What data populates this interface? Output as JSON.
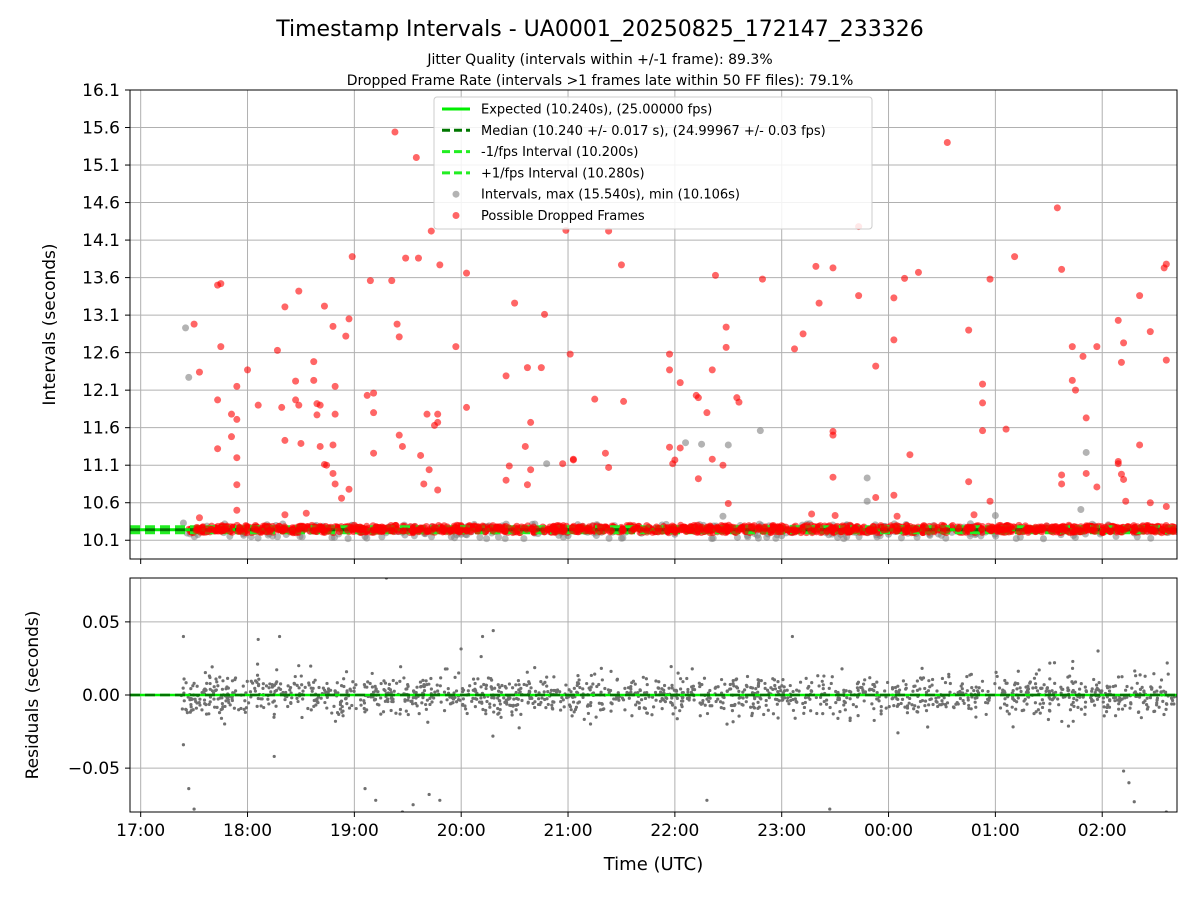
{
  "figure": {
    "title": "Timestamp Intervals - UA0001_20250825_172147_233326",
    "subtitle_1": "Jitter Quality (intervals within +/-1 frame): 89.3%",
    "subtitle_2": "Dropped Frame Rate (intervals >1 frames late within 50 FF files): 79.1%"
  },
  "colors": {
    "expected": "#00ee00",
    "median": "#007700",
    "fps_band": "#22ee22",
    "intervals": "#808080",
    "dropped": "#ff0000",
    "grid": "#b0b0b0",
    "residual": "#707070"
  },
  "chart_data": [
    {
      "type": "scatter",
      "title": "Timestamp Intervals - UA0001_20250825_172147_233326",
      "xlabel": "",
      "ylabel": "Intervals (seconds)",
      "x_unit": "hours since 17:00 UTC (axis labelled in clock time)",
      "xlim": [
        -0.1,
        9.7
      ],
      "ylim": [
        9.85,
        16.1
      ],
      "yticks": [
        "10.1",
        "10.6",
        "11.1",
        "11.6",
        "12.1",
        "12.6",
        "13.1",
        "13.6",
        "14.1",
        "14.6",
        "15.1",
        "15.6",
        "16.1"
      ],
      "grid": true,
      "legend_position": "top-center",
      "series": [
        {
          "name": "Expected (10.240s), (25.00000 fps)",
          "kind": "hline",
          "y": 10.24,
          "style": "solid"
        },
        {
          "name": "Median (10.240 +/- 0.017 s), (24.99967 +/- 0.03 fps)",
          "kind": "hline",
          "y": 10.24,
          "style": "dashed"
        },
        {
          "name": "-1/fps Interval (10.200s)",
          "kind": "hline",
          "y": 10.2,
          "style": "dashed"
        },
        {
          "name": "+1/fps Interval (10.280s)",
          "kind": "hline",
          "y": 10.28,
          "style": "dashed"
        },
        {
          "name": "Intervals, max (15.540s), min (10.106s)",
          "kind": "points",
          "max": 15.54,
          "min": 10.106,
          "points": [
            [
              0.42,
              12.93
            ],
            [
              0.45,
              12.27
            ],
            [
              0.4,
              10.33
            ],
            [
              0.5,
              10.25
            ],
            [
              3.8,
              11.12
            ],
            [
              5.1,
              11.4
            ],
            [
              5.25,
              11.38
            ],
            [
              5.5,
              11.37
            ],
            [
              5.8,
              11.56
            ],
            [
              8.45,
              10.12
            ],
            [
              8.8,
              10.51
            ],
            [
              8.85,
              11.27
            ],
            [
              6.8,
              10.93
            ],
            [
              6.8,
              10.62
            ],
            [
              8.0,
              10.43
            ],
            [
              5.45,
              10.42
            ],
            [
              1.2,
              10.19
            ],
            [
              2.1,
              10.15
            ],
            [
              3.0,
              10.18
            ],
            [
              4.0,
              10.16
            ],
            [
              5.0,
              10.18
            ],
            [
              6.0,
              10.16
            ],
            [
              7.0,
              10.18
            ]
          ]
        },
        {
          "name": "Possible Dropped Frames",
          "kind": "points",
          "points": [
            [
              0.5,
              12.98
            ],
            [
              0.55,
              12.34
            ],
            [
              0.55,
              10.4
            ],
            [
              0.72,
              13.5
            ],
            [
              0.75,
              13.52
            ],
            [
              0.75,
              12.68
            ],
            [
              0.72,
              11.97
            ],
            [
              0.72,
              11.32
            ],
            [
              0.85,
              11.78
            ],
            [
              0.85,
              11.48
            ],
            [
              0.9,
              11.71
            ],
            [
              0.9,
              11.2
            ],
            [
              0.9,
              10.84
            ],
            [
              0.9,
              10.5
            ],
            [
              0.9,
              12.15
            ],
            [
              1.0,
              12.37
            ],
            [
              1.1,
              11.9
            ],
            [
              1.28,
              12.63
            ],
            [
              1.32,
              11.87
            ],
            [
              1.35,
              13.21
            ],
            [
              1.35,
              11.43
            ],
            [
              1.35,
              10.44
            ],
            [
              1.48,
              13.42
            ],
            [
              1.45,
              12.22
            ],
            [
              1.45,
              11.97
            ],
            [
              1.48,
              11.9
            ],
            [
              1.5,
              11.39
            ],
            [
              1.55,
              10.46
            ],
            [
              1.62,
              12.48
            ],
            [
              1.62,
              12.23
            ],
            [
              1.65,
              11.92
            ],
            [
              1.68,
              11.9
            ],
            [
              1.65,
              11.77
            ],
            [
              1.68,
              11.35
            ],
            [
              1.72,
              13.22
            ],
            [
              1.72,
              11.11
            ],
            [
              1.74,
              11.1
            ],
            [
              1.8,
              12.95
            ],
            [
              1.8,
              10.99
            ],
            [
              1.82,
              10.85
            ],
            [
              1.82,
              12.15
            ],
            [
              1.82,
              11.78
            ],
            [
              1.8,
              11.37
            ],
            [
              1.88,
              10.66
            ],
            [
              1.92,
              12.82
            ],
            [
              1.95,
              13.05
            ],
            [
              1.95,
              10.78
            ],
            [
              1.98,
              13.88
            ],
            [
              2.12,
              12.03
            ],
            [
              2.15,
              13.56
            ],
            [
              2.18,
              11.8
            ],
            [
              2.18,
              12.06
            ],
            [
              2.18,
              11.26
            ],
            [
              2.35,
              13.56
            ],
            [
              2.38,
              15.54
            ],
            [
              2.4,
              12.98
            ],
            [
              2.42,
              12.81
            ],
            [
              2.42,
              11.5
            ],
            [
              2.45,
              11.35
            ],
            [
              2.48,
              13.86
            ],
            [
              2.58,
              15.2
            ],
            [
              2.6,
              13.86
            ],
            [
              2.62,
              11.23
            ],
            [
              2.65,
              10.85
            ],
            [
              2.68,
              11.78
            ],
            [
              2.7,
              11.04
            ],
            [
              2.72,
              14.22
            ],
            [
              2.75,
              11.63
            ],
            [
              2.78,
              11.67
            ],
            [
              2.78,
              11.78
            ],
            [
              2.78,
              10.77
            ],
            [
              2.8,
              13.77
            ],
            [
              2.95,
              12.68
            ],
            [
              3.05,
              13.66
            ],
            [
              3.05,
              11.87
            ],
            [
              3.42,
              12.29
            ],
            [
              3.45,
              11.09
            ],
            [
              3.42,
              10.9
            ],
            [
              3.5,
              13.26
            ],
            [
              3.6,
              11.35
            ],
            [
              3.62,
              12.4
            ],
            [
              3.62,
              10.84
            ],
            [
              3.65,
              11.67
            ],
            [
              3.65,
              11.04
            ],
            [
              3.75,
              12.4
            ],
            [
              3.78,
              13.11
            ],
            [
              3.95,
              11.12
            ],
            [
              3.98,
              14.23
            ],
            [
              4.02,
              12.58
            ],
            [
              4.05,
              11.18
            ],
            [
              4.05,
              11.17
            ],
            [
              4.25,
              11.98
            ],
            [
              4.35,
              11.26
            ],
            [
              4.38,
              11.07
            ],
            [
              4.38,
              14.22
            ],
            [
              4.5,
              13.77
            ],
            [
              4.52,
              11.95
            ],
            [
              4.95,
              12.58
            ],
            [
              4.95,
              12.37
            ],
            [
              4.95,
              11.34
            ],
            [
              4.98,
              11.12
            ],
            [
              5.0,
              11.17
            ],
            [
              5.05,
              12.2
            ],
            [
              5.05,
              11.33
            ],
            [
              5.2,
              12.03
            ],
            [
              5.22,
              12.0
            ],
            [
              5.22,
              10.92
            ],
            [
              5.3,
              11.8
            ],
            [
              5.35,
              12.37
            ],
            [
              5.35,
              11.18
            ],
            [
              5.38,
              13.63
            ],
            [
              5.45,
              11.1
            ],
            [
              5.48,
              12.94
            ],
            [
              5.48,
              12.67
            ],
            [
              5.5,
              10.59
            ],
            [
              5.58,
              12.0
            ],
            [
              5.6,
              11.94
            ],
            [
              5.82,
              13.58
            ],
            [
              6.12,
              12.65
            ],
            [
              6.2,
              12.85
            ],
            [
              6.28,
              10.45
            ],
            [
              6.32,
              13.75
            ],
            [
              6.35,
              13.26
            ],
            [
              6.48,
              13.73
            ],
            [
              6.48,
              11.55
            ],
            [
              6.48,
              11.5
            ],
            [
              6.48,
              10.94
            ],
            [
              6.5,
              10.43
            ],
            [
              6.72,
              14.28
            ],
            [
              6.72,
              13.36
            ],
            [
              6.88,
              12.42
            ],
            [
              6.88,
              10.67
            ],
            [
              7.05,
              13.33
            ],
            [
              7.05,
              12.77
            ],
            [
              7.05,
              10.7
            ],
            [
              7.08,
              10.42
            ],
            [
              7.15,
              13.59
            ],
            [
              7.2,
              11.24
            ],
            [
              7.28,
              13.67
            ],
            [
              7.55,
              15.4
            ],
            [
              7.75,
              12.9
            ],
            [
              7.75,
              10.88
            ],
            [
              7.8,
              10.44
            ],
            [
              7.88,
              12.18
            ],
            [
              7.88,
              11.93
            ],
            [
              7.88,
              11.56
            ],
            [
              7.95,
              13.58
            ],
            [
              7.95,
              10.62
            ],
            [
              8.1,
              11.58
            ],
            [
              8.18,
              13.88
            ],
            [
              8.58,
              14.53
            ],
            [
              8.62,
              13.71
            ],
            [
              8.62,
              10.97
            ],
            [
              8.62,
              10.85
            ],
            [
              8.72,
              12.68
            ],
            [
              8.72,
              12.23
            ],
            [
              8.75,
              12.1
            ],
            [
              8.82,
              12.55
            ],
            [
              8.85,
              11.73
            ],
            [
              8.85,
              10.99
            ],
            [
              8.95,
              12.68
            ],
            [
              8.95,
              10.81
            ],
            [
              9.15,
              13.03
            ],
            [
              9.15,
              11.12
            ],
            [
              9.15,
              11.15
            ],
            [
              9.18,
              12.47
            ],
            [
              9.18,
              10.98
            ],
            [
              9.2,
              12.73
            ],
            [
              9.2,
              10.91
            ],
            [
              9.22,
              10.62
            ],
            [
              9.35,
              13.36
            ],
            [
              9.35,
              11.37
            ],
            [
              9.45,
              12.88
            ],
            [
              9.45,
              10.6
            ],
            [
              9.58,
              13.73
            ],
            [
              9.6,
              13.78
            ],
            [
              9.6,
              12.5
            ],
            [
              9.6,
              10.55
            ]
          ]
        }
      ]
    },
    {
      "type": "scatter",
      "xlabel": "Time (UTC)",
      "ylabel": "Residuals (seconds)",
      "x_unit": "hours since 17:00 UTC (axis labelled in clock time)",
      "xlim": [
        -0.1,
        9.7
      ],
      "ylim": [
        -0.08,
        0.08
      ],
      "yticks": [
        "−0.05",
        "0.00",
        "0.05"
      ],
      "xticks": [
        "17:00",
        "18:00",
        "19:00",
        "20:00",
        "21:00",
        "22:00",
        "23:00",
        "00:00",
        "01:00",
        "02:00"
      ],
      "grid": true,
      "series": [
        {
          "kind": "hline",
          "y": 0.0
        },
        {
          "kind": "points",
          "x_range": [
            0.38,
            9.7
          ],
          "spread": 0.012,
          "outliers": [
            [
              0.4,
              0.04
            ],
            [
              0.4,
              -0.034
            ],
            [
              0.45,
              -0.064
            ],
            [
              0.5,
              -0.078
            ],
            [
              1.1,
              0.038
            ],
            [
              1.3,
              0.04
            ],
            [
              1.25,
              -0.042
            ],
            [
              2.1,
              -0.064
            ],
            [
              2.2,
              -0.072
            ],
            [
              2.3,
              0.08
            ],
            [
              2.45,
              -0.08
            ],
            [
              2.55,
              -0.075
            ],
            [
              2.7,
              -0.068
            ],
            [
              2.8,
              -0.072
            ],
            [
              3.2,
              0.04
            ],
            [
              3.3,
              0.044
            ],
            [
              5.3,
              -0.072
            ],
            [
              6.1,
              0.04
            ],
            [
              6.45,
              -0.078
            ],
            [
              9.2,
              -0.052
            ],
            [
              9.25,
              -0.06
            ],
            [
              9.3,
              -0.073
            ],
            [
              9.6,
              -0.08
            ]
          ]
        }
      ]
    }
  ],
  "legend": {
    "items": [
      "Expected (10.240s), (25.00000 fps)",
      "Median (10.240 +/- 0.017 s), (24.99967 +/- 0.03 fps)",
      "-1/fps Interval (10.200s)",
      "+1/fps Interval (10.280s)",
      "Intervals, max (15.540s), min (10.106s)",
      "Possible Dropped Frames"
    ]
  }
}
